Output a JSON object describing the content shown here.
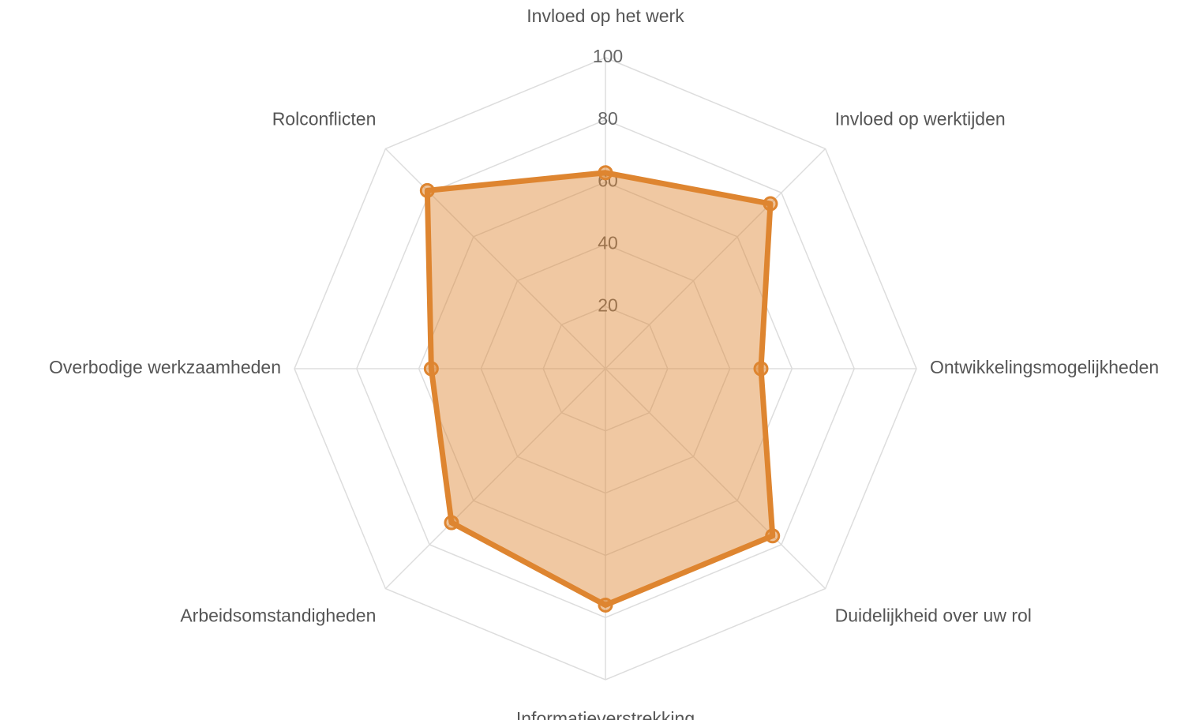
{
  "chart_data": {
    "type": "radar",
    "categories": [
      "Invloed op het werk",
      "Invloed op werktijden",
      "Ontwikkelingsmogelijkheden",
      "Duidelijkheid over uw rol",
      "Informatieverstrekking",
      "Arbeidsomstandigheden",
      "Overbodige werkzaamheden",
      "Rolconflicten"
    ],
    "values": [
      63,
      75,
      50,
      76,
      76,
      70,
      56,
      81
    ],
    "color": "#de8530",
    "rlim": [
      0,
      100
    ],
    "rticks": [
      20,
      40,
      60,
      80,
      100
    ],
    "grid": true
  }
}
